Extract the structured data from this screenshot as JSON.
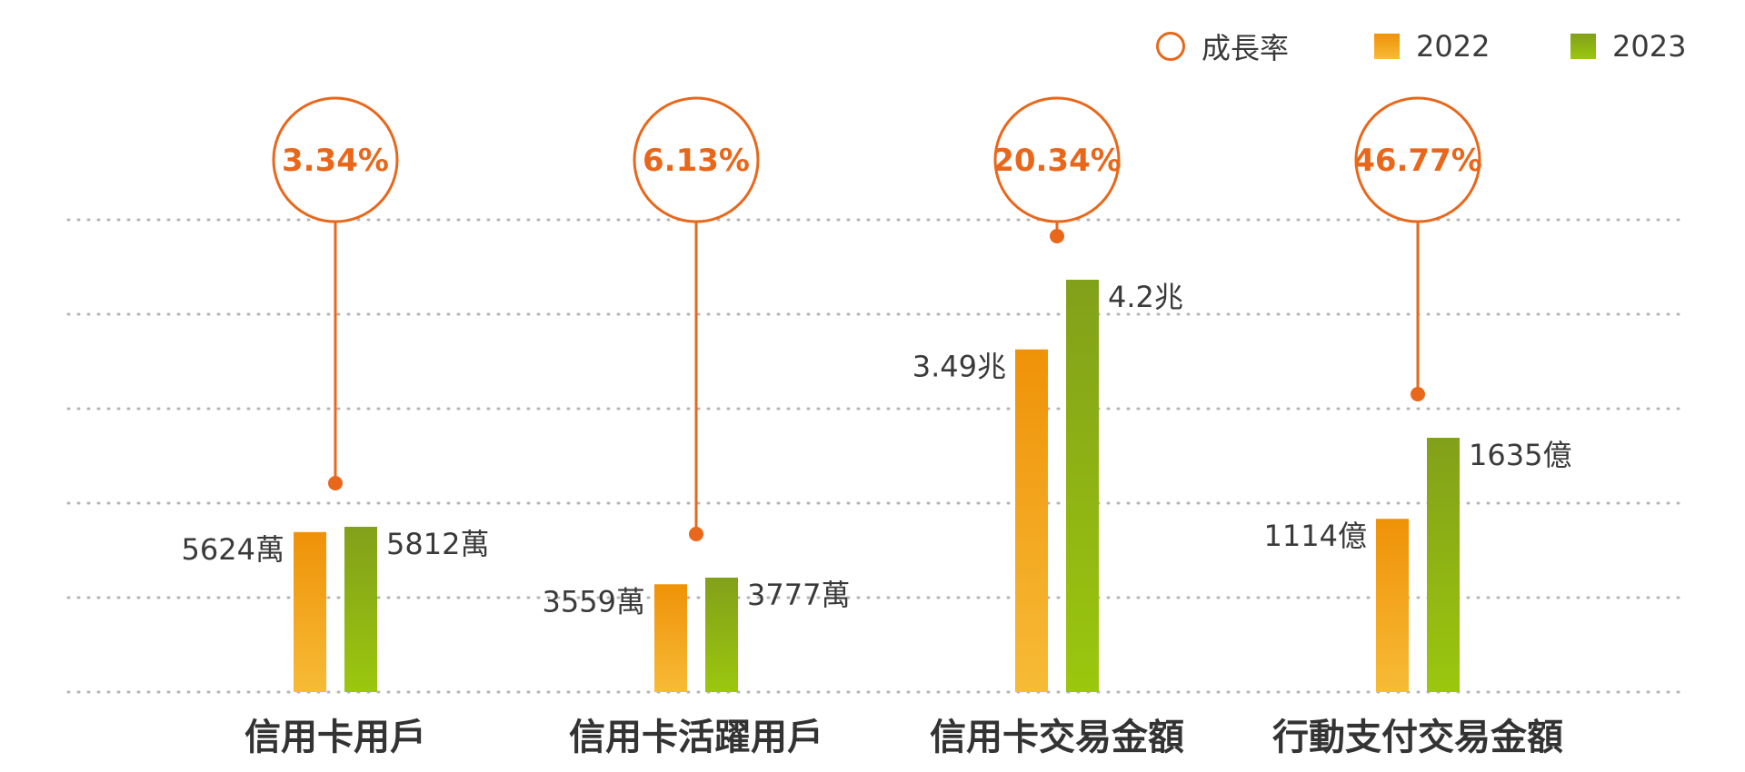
{
  "chart_data": {
    "type": "bar",
    "legend": {
      "items": [
        {
          "label": "成長率",
          "shape": "circle",
          "color": "#e9671b"
        },
        {
          "label": "2022",
          "shape": "square",
          "color": "#f39a1a"
        },
        {
          "label": "2023",
          "shape": "square",
          "color": "#8fb51a"
        }
      ],
      "placement": "top-right"
    },
    "categories": [
      "信用卡用戶",
      "信用卡活躍用戶",
      "信用卡交易金額",
      "行動支付交易金額"
    ],
    "series": [
      {
        "name": "2022",
        "values": [
          5624,
          3559,
          3.49,
          1114
        ],
        "labels": [
          "5624萬",
          "3559萬",
          "3.49兆",
          "1114億"
        ]
      },
      {
        "name": "2023",
        "values": [
          5812,
          3777,
          4.2,
          1635
        ],
        "labels": [
          "5812萬",
          "3777萬",
          "4.2兆",
          "1635億"
        ]
      }
    ],
    "units": [
      "萬",
      "萬",
      "兆",
      "億"
    ],
    "growth_rates": [
      "3.34%",
      "6.13%",
      "20.34%",
      "46.77%"
    ],
    "grid": "dotted-horizontal",
    "colors": {
      "growth": "#e9671b",
      "bar_2022_top": "#ef9208",
      "bar_2022_bottom": "#f7bb36",
      "bar_2023_top": "#82a01a",
      "bar_2023_bottom": "#9bc70e",
      "grid": "#b5b5b5",
      "label_text": "#3a3a3a",
      "category_text": "#333333"
    }
  }
}
